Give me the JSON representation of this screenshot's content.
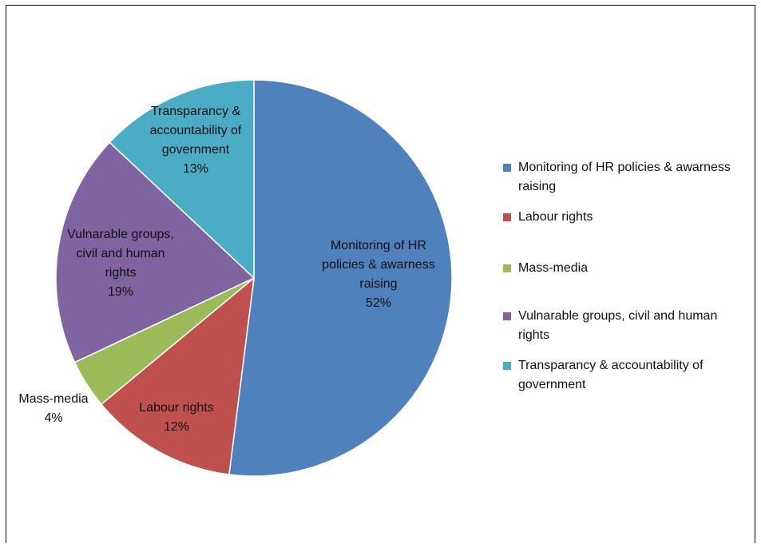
{
  "chart_data": {
    "type": "pie",
    "title": "",
    "categories": [
      "Monitoring of HR policies & awarness raising",
      "Labour rights",
      "Mass-media",
      "Vulnarable groups, civil and human rights",
      "Transparancy & accountability of government"
    ],
    "values": [
      52,
      12,
      4,
      19,
      13
    ],
    "unit": "%",
    "colors": [
      "#4F81BD",
      "#C0504D",
      "#9BBB59",
      "#8064A2",
      "#4BACC6"
    ],
    "data_labels": [
      {
        "text": [
          "Monitoring of HR",
          "policies & awarness",
          "raising"
        ],
        "pct": "52%"
      },
      {
        "text": [
          "Labour rights"
        ],
        "pct": "12%"
      },
      {
        "text": [
          "Mass-media"
        ],
        "pct": "4%"
      },
      {
        "text": [
          "Vulnarable groups,",
          "civil and human",
          "rights"
        ],
        "pct": "19%"
      },
      {
        "text": [
          "Transparancy &",
          "accountability of",
          "government"
        ],
        "pct": "13%"
      }
    ],
    "legend": {
      "position": "right",
      "entries": [
        "Monitoring of HR policies & awarness raising",
        "Labour rights",
        "Mass-media",
        "Vulnarable groups, civil and human rights",
        "Transparancy & accountability of government"
      ]
    },
    "start_angle": "12 o'clock",
    "direction": "clockwise"
  }
}
